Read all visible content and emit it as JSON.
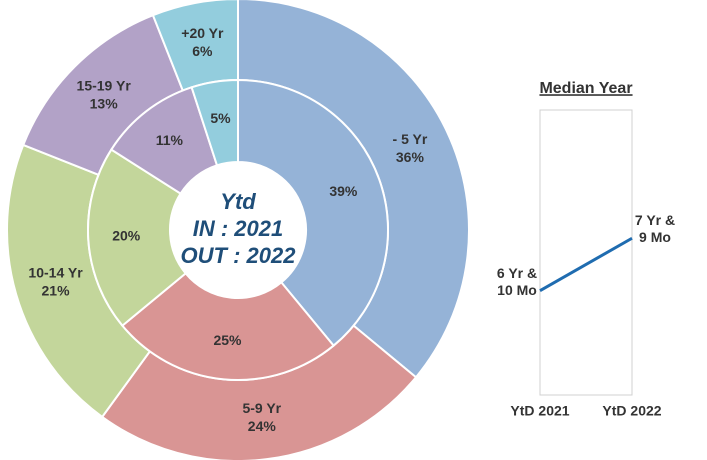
{
  "chart_data": [
    {
      "type": "donut",
      "categories": [
        "- 5 Yr",
        "5-9 Yr",
        "10-14 Yr",
        "15-19 Yr",
        "+20 Yr"
      ],
      "colors": [
        "#95b3d7",
        "#d99594",
        "#c3d69b",
        "#b2a2c7",
        "#93cddd"
      ],
      "series": [
        {
          "values": [
            36,
            24,
            21,
            13,
            6
          ],
          "value_labels": [
            "36%",
            "24%",
            "21%",
            "13%",
            "6%"
          ]
        },
        {
          "values": [
            39,
            25,
            20,
            11,
            5
          ],
          "value_labels": [
            "39%",
            "25%",
            "20%",
            "11%",
            "5%"
          ]
        }
      ],
      "center_text": [
        "Ytd",
        "IN : 2021",
        "OUT : 2022"
      ]
    },
    {
      "type": "line",
      "title": "Median Year",
      "categories": [
        "YtD 2021",
        "YtD 2022"
      ],
      "values": [
        6.83,
        7.75
      ],
      "value_labels": [
        "6 Yr & 10 Mo",
        "7 Yr & 9 Mo"
      ],
      "ylim": [
        5,
        10
      ],
      "color": "#1f6cb0"
    }
  ]
}
